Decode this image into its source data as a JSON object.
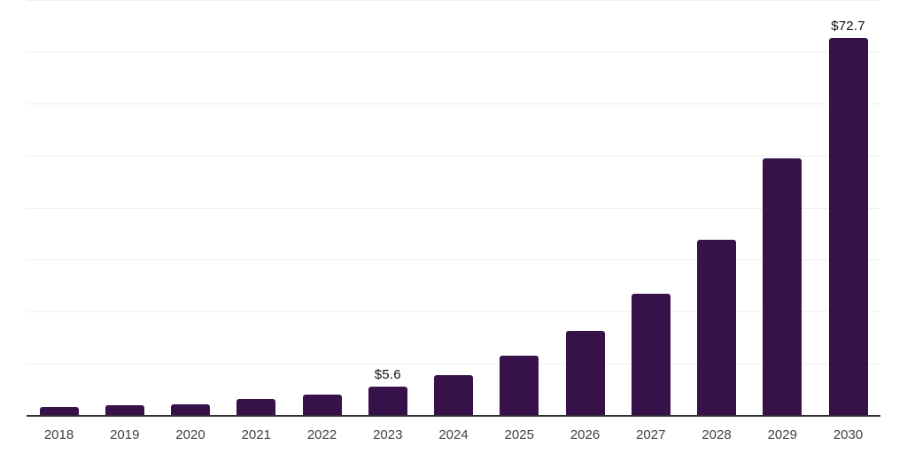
{
  "chart_data": {
    "type": "bar",
    "title": "",
    "xlabel": "",
    "ylabel": "",
    "categories": [
      "2018",
      "2019",
      "2020",
      "2021",
      "2022",
      "2023",
      "2024",
      "2025",
      "2026",
      "2027",
      "2028",
      "2029",
      "2030"
    ],
    "values": [
      1.7,
      2.0,
      2.2,
      3.2,
      4.1,
      5.6,
      7.9,
      11.5,
      16.3,
      23.5,
      33.8,
      49.5,
      72.7
    ],
    "annotations": [
      {
        "category": "2023",
        "label": "$5.6"
      },
      {
        "category": "2030",
        "label": "$72.7"
      }
    ],
    "ylim": [
      0,
      80
    ],
    "gridline_step": 10,
    "grid": true,
    "legend": "none",
    "colors": {
      "bar": "#36114A",
      "axis_line": "#303030",
      "gridline": "#EFEFEF",
      "tick_label": "#3F3F3F",
      "value_label": "#111111",
      "background": "#FFFFFF"
    }
  }
}
